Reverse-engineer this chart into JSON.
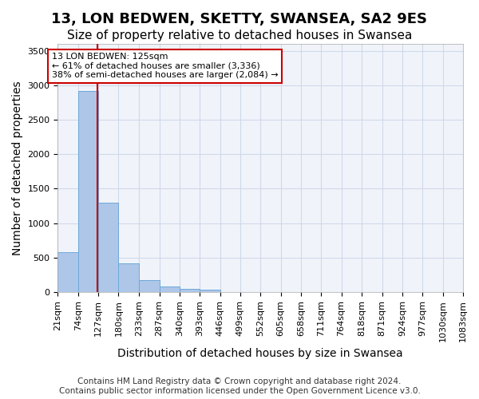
{
  "title": "13, LON BEDWEN, SKETTY, SWANSEA, SA2 9ES",
  "subtitle": "Size of property relative to detached houses in Swansea",
  "xlabel": "Distribution of detached houses by size in Swansea",
  "ylabel": "Number of detached properties",
  "footer1": "Contains HM Land Registry data © Crown copyright and database right 2024.",
  "footer2": "Contains public sector information licensed under the Open Government Licence v3.0.",
  "bin_labels": [
    "21sqm",
    "74sqm",
    "127sqm",
    "180sqm",
    "233sqm",
    "287sqm",
    "340sqm",
    "393sqm",
    "446sqm",
    "499sqm",
    "552sqm",
    "605sqm",
    "658sqm",
    "711sqm",
    "764sqm",
    "818sqm",
    "871sqm",
    "924sqm",
    "977sqm",
    "1030sqm",
    "1083sqm"
  ],
  "bin_edges": [
    21,
    74,
    127,
    180,
    233,
    287,
    340,
    393,
    446,
    499,
    552,
    605,
    658,
    711,
    764,
    818,
    871,
    924,
    977,
    1030,
    1083
  ],
  "bar_values": [
    580,
    2920,
    1300,
    420,
    170,
    85,
    50,
    30,
    5,
    2,
    1,
    0,
    0,
    0,
    0,
    0,
    0,
    0,
    0,
    0
  ],
  "bar_color": "#aec6e8",
  "bar_edge_color": "#6ea8d8",
  "grid_color": "#d0d8e8",
  "property_line_x": 125,
  "property_line_color": "#cc0000",
  "annotation_text": "13 LON BEDWEN: 125sqm\n← 61% of detached houses are smaller (3,336)\n38% of semi-detached houses are larger (2,084) →",
  "annotation_box_color": "#cc0000",
  "ylim": [
    0,
    3600
  ],
  "yticks": [
    0,
    500,
    1000,
    1500,
    2000,
    2500,
    3000,
    3500
  ],
  "bg_color": "#f0f4fa",
  "title_fontsize": 13,
  "subtitle_fontsize": 11,
  "axis_label_fontsize": 10,
  "tick_fontsize": 8,
  "footer_fontsize": 7.5
}
